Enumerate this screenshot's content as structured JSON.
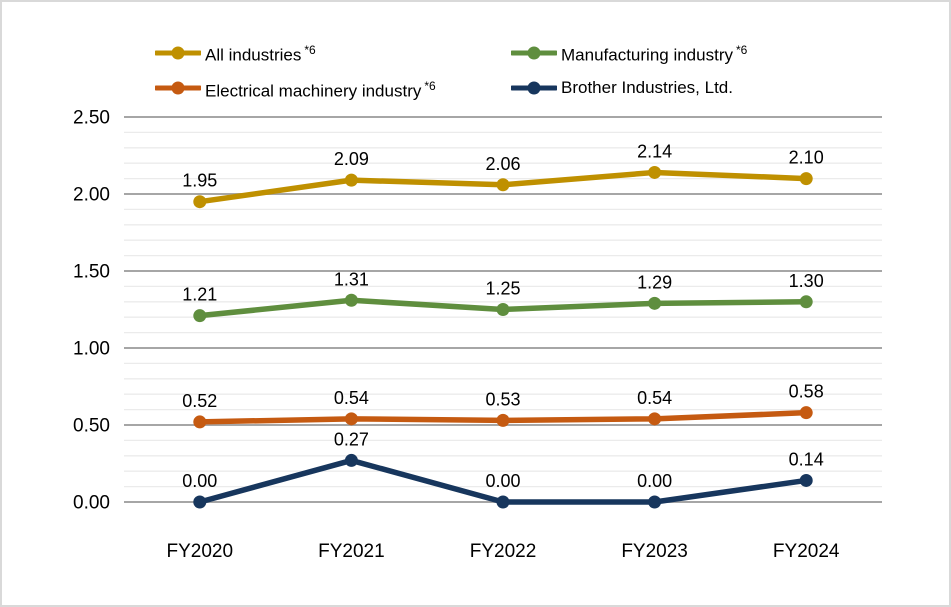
{
  "figure": {
    "background": "#ffffff",
    "border_color": "#d9d9d9",
    "text_color": "#000000",
    "major_grid_color": "#a6a6a6",
    "minor_grid_color": "#ebebeb"
  },
  "chart_data": {
    "type": "line",
    "x": [
      "FY2020",
      "FY2021",
      "FY2022",
      "FY2023",
      "FY2024"
    ],
    "series": [
      {
        "name": "All industries",
        "note": "*6",
        "color": "#bf9000",
        "values": [
          1.95,
          2.09,
          2.06,
          2.14,
          2.1
        ]
      },
      {
        "name": "Manufacturing industry",
        "note": "*6",
        "color": "#5f8e3e",
        "values": [
          1.21,
          1.31,
          1.25,
          1.29,
          1.3
        ]
      },
      {
        "name": "Electrical machinery industry",
        "note": "*6",
        "color": "#c55a11",
        "values": [
          0.52,
          0.54,
          0.53,
          0.54,
          0.58
        ]
      },
      {
        "name": "Brother Industries, Ltd.",
        "note": "",
        "color": "#17365d",
        "values": [
          0.0,
          0.27,
          0.0,
          0.0,
          0.14
        ]
      }
    ],
    "y_ticks": [
      "2.50",
      "2.00",
      "1.50",
      "1.00",
      "0.50",
      "0.00"
    ],
    "ylim": [
      0,
      2.5
    ],
    "major_step": 0.5,
    "minor_step": 0.1,
    "grid": true,
    "legend_position": "top",
    "value_labels": true,
    "value_label_decimals": 2
  }
}
